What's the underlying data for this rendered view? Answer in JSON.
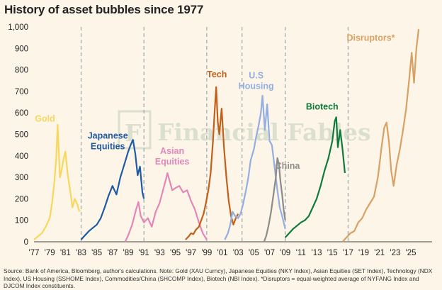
{
  "title": "History of asset bubbles since 1977",
  "source": "Source: Bank of America, Bloomberg, author's calculations. Note: Gold (XAU Curncy), Japanese Equities (NKY Index), Asian Equities (SET Index), Technology (NDX Index), US Housing (SSHOME Index), Commodities/China (SHCOMP Index), Biotech (NBI Index). *Disruptors = equal-weighted average of NYFANG Index and DJCOM Index constituents.",
  "watermark": "Financial Fables",
  "watermark_letter": "F",
  "colors": {
    "gold": "#f9d65c",
    "japan": "#1f5aa6",
    "asia": "#e586b8",
    "tech": "#c2601a",
    "housing": "#93aee0",
    "china": "#8c8c8c",
    "biotech": "#0f7a3b",
    "disruptors": "#d9a063",
    "grid": "#8fa0ad"
  },
  "chart_data": {
    "type": "line",
    "title": "History of asset bubbles since 1977",
    "xlabel": "",
    "ylabel": "",
    "ylim": [
      0,
      1000
    ],
    "xlim": [
      1977,
      2026.8
    ],
    "y_ticks": [
      0,
      100,
      200,
      300,
      400,
      500,
      600,
      700,
      800,
      900,
      1000
    ],
    "y_tick_labels": [
      "0",
      "100",
      "200",
      "300",
      "400",
      "500",
      "600",
      "700",
      "800",
      "900",
      "1,000"
    ],
    "x_ticks": [
      1977,
      1979,
      1981,
      1983,
      1985,
      1987,
      1989,
      1991,
      1993,
      1995,
      1997,
      1999,
      2001,
      2003,
      2005,
      2007,
      2009,
      2011,
      2013,
      2015,
      2017,
      2019,
      2021,
      2023,
      2025
    ],
    "x_tick_labels": [
      "'77",
      "'79",
      "'81",
      "'83",
      "'85",
      "'87",
      "'89",
      "'91",
      "'93",
      "'95",
      "'97",
      "'99",
      "'01",
      "'03",
      "'05",
      "'07",
      "'09",
      "'11",
      "'13",
      "'15",
      "'17",
      "'19",
      "'21",
      "'23",
      "'25"
    ],
    "dividers": [
      1983,
      1991,
      1999,
      2003.5,
      2009,
      2017
    ],
    "grid": false,
    "series": [
      {
        "name": "Gold",
        "key": "gold",
        "label_pos": [
          1978.4,
          560
        ],
        "x": [
          1977,
          1977.5,
          1978,
          1978.5,
          1979,
          1979.3,
          1979.6,
          1979.85,
          1980.0,
          1980.15,
          1980.3,
          1980.5,
          1980.8,
          1981.0,
          1981.3,
          1981.6,
          1981.9,
          1982.2,
          1982.5,
          1982.8
        ],
        "y": [
          10,
          25,
          40,
          70,
          110,
          180,
          280,
          400,
          545,
          430,
          300,
          330,
          390,
          420,
          310,
          240,
          160,
          200,
          175,
          140
        ]
      },
      {
        "name": "Japanese Equities",
        "key": "japan",
        "label_pos": [
          1986.4,
          480
        ],
        "label_lines": [
          "Japanese",
          "Equities"
        ],
        "x": [
          1983,
          1983.5,
          1984,
          1984.5,
          1985,
          1985.5,
          1986,
          1986.5,
          1987,
          1987.5,
          1988,
          1988.5,
          1989,
          1989.3,
          1989.6,
          1989.9,
          1990.2,
          1990.5,
          1990.8,
          1991
        ],
        "y": [
          10,
          30,
          50,
          65,
          80,
          110,
          160,
          215,
          260,
          220,
          300,
          360,
          420,
          450,
          475,
          410,
          310,
          350,
          230,
          200
        ]
      },
      {
        "name": "Asian Equities",
        "key": "asia",
        "label_pos": [
          1994.6,
          410
        ],
        "label_lines": [
          "Asian",
          "Equities"
        ],
        "x": [
          1988.6,
          1989,
          1989.5,
          1990,
          1990.3,
          1990.6,
          1991,
          1991.5,
          1992,
          1992.5,
          1993,
          1993.5,
          1993.8,
          1994,
          1994.3,
          1994.6,
          1995,
          1995.5,
          1996,
          1996.5,
          1997,
          1997.5,
          1998,
          1998.5,
          1999
        ],
        "y": [
          0,
          30,
          80,
          150,
          185,
          120,
          90,
          110,
          70,
          140,
          180,
          250,
          290,
          320,
          280,
          240,
          250,
          260,
          230,
          240,
          190,
          150,
          90,
          40,
          10
        ]
      },
      {
        "name": "Tech",
        "key": "tech",
        "label_pos": [
          2000.3,
          765
        ],
        "x": [
          1996.3,
          1996.7,
          1997,
          1997.3,
          1997.6,
          1998,
          1998.3,
          1998.6,
          1998.9,
          1999.2,
          1999.5,
          1999.8,
          2000.0,
          2000.2,
          2000.4,
          2000.6,
          2000.9,
          2001.2,
          2001.5,
          2001.8,
          2002.1,
          2002.4,
          2002.7,
          2003.0
        ],
        "y": [
          10,
          25,
          40,
          35,
          55,
          70,
          100,
          130,
          180,
          240,
          320,
          470,
          600,
          720,
          560,
          500,
          620,
          440,
          300,
          190,
          120,
          80,
          110,
          130
        ]
      },
      {
        "name": "U.S Housing",
        "key": "housing",
        "label_pos": [
          2005.3,
          760
        ],
        "label_lines": [
          "U.S",
          "Housing"
        ],
        "x": [
          2001.3,
          2001.7,
          2002,
          2002.3,
          2002.6,
          2003,
          2003.3,
          2003.6,
          2004,
          2004.3,
          2004.6,
          2005,
          2005.3,
          2005.6,
          2005.9,
          2006.1,
          2006.4,
          2006.7,
          2007.0,
          2007.3,
          2007.6,
          2008,
          2008.3,
          2008.6,
          2009
        ],
        "y": [
          10,
          40,
          80,
          140,
          120,
          110,
          130,
          170,
          240,
          300,
          380,
          430,
          490,
          540,
          600,
          680,
          520,
          640,
          470,
          450,
          360,
          240,
          160,
          120,
          60
        ]
      },
      {
        "name": "China",
        "key": "china",
        "label_pos": [
          2009.3,
          340
        ],
        "x": [
          2006.3,
          2006.6,
          2006.9,
          2007.2,
          2007.5,
          2007.8,
          2008.0,
          2008.2,
          2008.4,
          2008.6,
          2008.8,
          2009.0
        ],
        "y": [
          0,
          30,
          80,
          140,
          220,
          300,
          390,
          360,
          280,
          220,
          150,
          100
        ]
      },
      {
        "name": "Biotech",
        "key": "biotech",
        "label_pos": [
          2013.7,
          615
        ],
        "x": [
          2009,
          2009.5,
          2010,
          2010.5,
          2011,
          2011.5,
          2012,
          2012.5,
          2013,
          2013.5,
          2014,
          2014.5,
          2015,
          2015.3,
          2015.5,
          2015.7,
          2016,
          2016.3,
          2016.6
        ],
        "y": [
          20,
          40,
          60,
          75,
          90,
          100,
          120,
          160,
          200,
          260,
          330,
          390,
          470,
          560,
          580,
          440,
          520,
          430,
          320
        ]
      },
      {
        "name": "Disruptors*",
        "key": "disruptors",
        "label_pos": [
          2019.9,
          935
        ],
        "x": [
          2016.3,
          2016.8,
          2017.3,
          2017.8,
          2018.3,
          2018.8,
          2019.3,
          2019.8,
          2020.3,
          2020.8,
          2021.3,
          2021.6,
          2021.9,
          2022.2,
          2022.5,
          2022.8,
          2023.2,
          2023.6,
          2024,
          2024.4,
          2024.8,
          2025.1,
          2025.4,
          2025.7,
          2026.0
        ],
        "y": [
          0,
          20,
          40,
          50,
          90,
          110,
          150,
          180,
          210,
          300,
          450,
          530,
          555,
          470,
          330,
          260,
          360,
          430,
          520,
          620,
          760,
          880,
          740,
          900,
          990
        ]
      }
    ]
  }
}
